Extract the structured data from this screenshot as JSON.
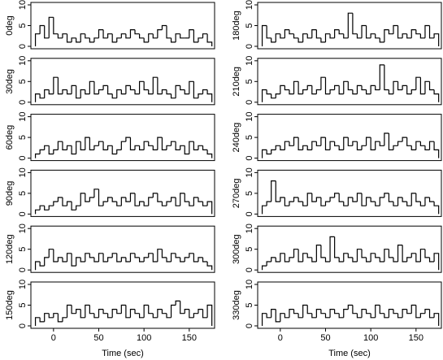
{
  "chart_data": {
    "type": "histogram",
    "xlabel": "Time (sec)",
    "color": "#000000",
    "xlim": [
      -25,
      178
    ],
    "xticks": [
      0,
      50,
      100,
      150
    ],
    "ylim": [
      0,
      10
    ],
    "yticks": [
      0,
      5,
      10
    ],
    "bins": [
      -20,
      -15,
      -10,
      -5,
      0,
      5,
      10,
      15,
      20,
      25,
      30,
      35,
      40,
      45,
      50,
      55,
      60,
      65,
      70,
      75,
      80,
      85,
      90,
      95,
      100,
      105,
      110,
      115,
      120,
      125,
      130,
      135,
      140,
      145,
      150,
      155,
      160,
      165,
      170,
      175
    ],
    "series": [
      {
        "name": "0deg",
        "values": [
          3,
          5,
          2,
          7,
          3,
          2,
          3,
          1,
          2,
          1,
          3,
          2,
          1,
          2,
          4,
          2,
          3,
          1,
          2,
          3,
          2,
          4,
          3,
          2,
          1,
          3,
          2,
          4,
          5,
          2,
          1,
          3,
          2,
          2,
          4,
          1,
          2,
          3,
          1
        ]
      },
      {
        "name": "30deg",
        "values": [
          2,
          1,
          3,
          2,
          6,
          2,
          3,
          2,
          4,
          1,
          3,
          2,
          5,
          2,
          3,
          4,
          2,
          1,
          3,
          2,
          4,
          3,
          2,
          5,
          3,
          2,
          6,
          2,
          3,
          2,
          1,
          4,
          3,
          2,
          5,
          1,
          2,
          3,
          2
        ]
      },
      {
        "name": "60deg",
        "values": [
          1,
          2,
          3,
          1,
          2,
          4,
          2,
          3,
          1,
          4,
          2,
          5,
          2,
          3,
          4,
          2,
          3,
          1,
          2,
          4,
          5,
          2,
          3,
          2,
          4,
          3,
          2,
          5,
          2,
          3,
          4,
          2,
          3,
          1,
          4,
          2,
          3,
          2,
          1
        ]
      },
      {
        "name": "90deg",
        "values": [
          1,
          2,
          1,
          2,
          3,
          4,
          2,
          3,
          1,
          2,
          5,
          3,
          4,
          6,
          2,
          3,
          4,
          3,
          2,
          4,
          3,
          5,
          2,
          3,
          2,
          4,
          5,
          3,
          2,
          3,
          4,
          2,
          5,
          3,
          2,
          4,
          3,
          2,
          3
        ]
      },
      {
        "name": "120deg",
        "values": [
          2,
          1,
          3,
          5,
          2,
          3,
          2,
          4,
          1,
          3,
          2,
          4,
          3,
          2,
          4,
          2,
          3,
          4,
          2,
          3,
          2,
          4,
          3,
          2,
          3,
          4,
          2,
          5,
          3,
          2,
          4,
          3,
          2,
          3,
          4,
          2,
          3,
          2,
          1
        ]
      },
      {
        "name": "150deg",
        "values": [
          2,
          1,
          3,
          2,
          3,
          1,
          2,
          5,
          3,
          4,
          2,
          5,
          3,
          2,
          4,
          3,
          2,
          4,
          3,
          5,
          2,
          4,
          3,
          2,
          5,
          3,
          2,
          4,
          3,
          2,
          5,
          6,
          3,
          4,
          2,
          3,
          4,
          2,
          5
        ]
      },
      {
        "name": "180deg",
        "values": [
          5,
          2,
          1,
          3,
          2,
          4,
          3,
          2,
          1,
          3,
          2,
          4,
          2,
          1,
          3,
          2,
          4,
          3,
          2,
          8,
          3,
          2,
          5,
          2,
          3,
          2,
          1,
          4,
          3,
          5,
          2,
          3,
          2,
          4,
          3,
          2,
          5,
          2,
          3
        ]
      },
      {
        "name": "210deg",
        "values": [
          3,
          2,
          1,
          2,
          4,
          3,
          2,
          5,
          2,
          3,
          4,
          2,
          3,
          6,
          2,
          3,
          4,
          2,
          5,
          3,
          2,
          4,
          3,
          2,
          4,
          3,
          9,
          3,
          2,
          5,
          3,
          4,
          2,
          3,
          6,
          2,
          5,
          3,
          2
        ]
      },
      {
        "name": "240deg",
        "values": [
          2,
          1,
          2,
          3,
          2,
          4,
          3,
          5,
          2,
          3,
          2,
          4,
          3,
          5,
          2,
          4,
          3,
          2,
          5,
          3,
          4,
          2,
          3,
          5,
          2,
          4,
          3,
          6,
          2,
          3,
          4,
          5,
          3,
          2,
          4,
          3,
          2,
          4,
          2
        ]
      },
      {
        "name": "270deg",
        "values": [
          2,
          3,
          8,
          3,
          4,
          2,
          3,
          4,
          3,
          2,
          5,
          3,
          4,
          2,
          3,
          4,
          5,
          3,
          2,
          4,
          3,
          5,
          2,
          4,
          3,
          2,
          4,
          5,
          3,
          2,
          4,
          3,
          2,
          5,
          3,
          2,
          4,
          3,
          2
        ]
      },
      {
        "name": "300deg",
        "values": [
          1,
          2,
          3,
          2,
          4,
          2,
          3,
          5,
          2,
          4,
          3,
          2,
          6,
          3,
          2,
          8,
          3,
          2,
          4,
          3,
          2,
          5,
          3,
          2,
          4,
          3,
          2,
          5,
          3,
          2,
          6,
          2,
          3,
          4,
          2,
          5,
          3,
          2,
          4
        ]
      },
      {
        "name": "330deg",
        "values": [
          3,
          2,
          4,
          1,
          3,
          2,
          4,
          3,
          2,
          5,
          3,
          2,
          4,
          3,
          2,
          4,
          3,
          2,
          4,
          5,
          3,
          2,
          4,
          3,
          2,
          5,
          3,
          2,
          4,
          3,
          2,
          4,
          3,
          5,
          2,
          3,
          4,
          2,
          3
        ]
      }
    ]
  }
}
